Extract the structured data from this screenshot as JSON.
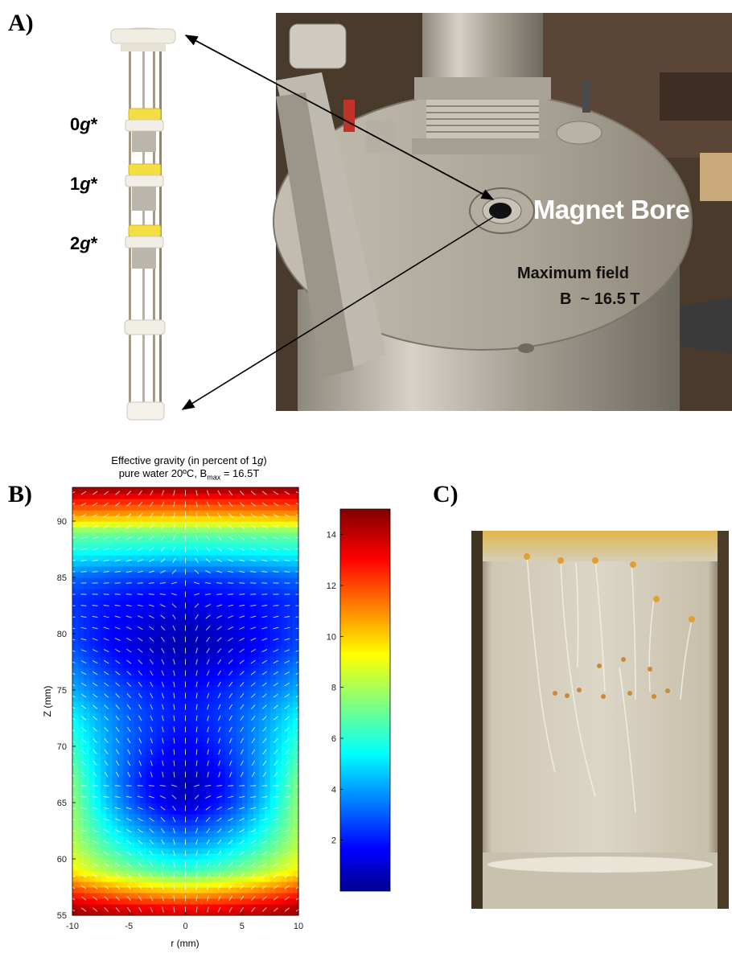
{
  "panels": {
    "a": "A)",
    "b": "B)",
    "c": "C)"
  },
  "sample_holder": {
    "labels": [
      {
        "prefix": "0",
        "g": "g",
        "suffix": "*"
      },
      {
        "prefix": "1",
        "g": "g",
        "suffix": "*"
      },
      {
        "prefix": "2",
        "g": "g",
        "suffix": "*"
      }
    ]
  },
  "magnet_photo": {
    "bore_label": "Magnet Bore",
    "field_line1": "Maximum field",
    "field_line2": "B  ~ 16.5 T"
  },
  "chart_data": {
    "type": "heatmap",
    "title_line1_pre": "Effective gravity (in percent of 1",
    "title_line1_g": "g",
    "title_line1_post": ")",
    "title_line2_pre": "pure water 20ºC, B",
    "title_line2_sub": "max",
    "title_line2_post": " = 16.5T",
    "xlabel": "r (mm)",
    "ylabel": "Z (mm)",
    "xlim": [
      -10,
      10
    ],
    "ylim": [
      55,
      93
    ],
    "x_ticks": [
      -10,
      -5,
      0,
      5,
      10
    ],
    "y_ticks": [
      55,
      60,
      65,
      70,
      75,
      80,
      85,
      90
    ],
    "colorbar": {
      "range": [
        0,
        15
      ],
      "ticks": [
        2,
        4,
        6,
        8,
        10,
        12,
        14
      ],
      "colormap": "jet"
    },
    "z_levels": [
      {
        "z": 55.5,
        "center": 13.5,
        "edge": 14.5
      },
      {
        "z": 57,
        "center": 10.5,
        "edge": 12.5
      },
      {
        "z": 59,
        "center": 6.5,
        "edge": 9.5
      },
      {
        "z": 61,
        "center": 4.5,
        "edge": 8.5
      },
      {
        "z": 63,
        "center": 2.8,
        "edge": 8.0
      },
      {
        "z": 65,
        "center": 1.2,
        "edge": 7.8
      },
      {
        "z": 67,
        "center": 0.8,
        "edge": 7.5
      },
      {
        "z": 69,
        "center": 1.5,
        "edge": 6.8
      },
      {
        "z": 71,
        "center": 2.0,
        "edge": 6.2
      },
      {
        "z": 73,
        "center": 2.2,
        "edge": 5.5
      },
      {
        "z": 75,
        "center": 2.0,
        "edge": 4.5
      },
      {
        "z": 77,
        "center": 1.2,
        "edge": 3.8
      },
      {
        "z": 79,
        "center": 0.7,
        "edge": 3.0
      },
      {
        "z": 81,
        "center": 1.0,
        "edge": 2.8
      },
      {
        "z": 83,
        "center": 1.6,
        "edge": 2.6
      },
      {
        "z": 85,
        "center": 2.6,
        "edge": 3.4
      },
      {
        "z": 87,
        "center": 5.2,
        "edge": 5.6
      },
      {
        "z": 89,
        "center": 7.2,
        "edge": 7.4
      },
      {
        "z": 90.5,
        "center": 10.5,
        "edge": 10.8
      },
      {
        "z": 91.8,
        "center": 12.5,
        "edge": 12.8
      },
      {
        "z": 92.7,
        "center": 14.2,
        "edge": 14.4
      }
    ]
  }
}
